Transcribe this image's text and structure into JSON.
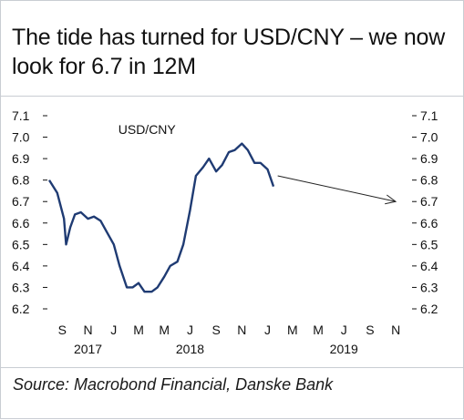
{
  "title": "The tide has turned for USD/CNY – we now look for 6.7 in 12M",
  "source": "Source: Macrobond Financial, Danske Bank",
  "chart_data": {
    "type": "line",
    "series_label": "USD/CNY",
    "ylim": [
      6.2,
      7.1
    ],
    "yticks": [
      "7.1",
      "7.0",
      "6.9",
      "6.8",
      "6.7",
      "6.6",
      "6.5",
      "6.4",
      "6.3",
      "6.2"
    ],
    "month_labels": [
      "S",
      "N",
      "J",
      "M",
      "M",
      "J",
      "S",
      "N",
      "J",
      "M",
      "M",
      "J",
      "S",
      "N"
    ],
    "year_labels": [
      {
        "label": "2017",
        "month_index": 1
      },
      {
        "label": "2018",
        "month_index": 5
      },
      {
        "label": "2019",
        "month_index": 11
      }
    ],
    "line_color": "#1f3b73",
    "x_start": "2017-08-01",
    "x_end": "2019-12-01",
    "series": {
      "x": [
        "2017-08-01",
        "2017-08-20",
        "2017-09-05",
        "2017-09-10",
        "2017-09-20",
        "2017-10-01",
        "2017-10-15",
        "2017-11-01",
        "2017-11-15",
        "2017-12-01",
        "2017-12-15",
        "2018-01-01",
        "2018-01-15",
        "2018-02-01",
        "2018-02-15",
        "2018-03-01",
        "2018-03-15",
        "2018-04-01",
        "2018-04-15",
        "2018-05-01",
        "2018-05-15",
        "2018-06-01",
        "2018-06-15",
        "2018-07-01",
        "2018-07-15",
        "2018-08-01",
        "2018-08-15",
        "2018-09-01",
        "2018-09-15",
        "2018-10-01",
        "2018-10-15",
        "2018-11-01",
        "2018-11-15",
        "2018-12-01",
        "2018-12-15",
        "2019-01-01",
        "2019-01-15"
      ],
      "y": [
        6.8,
        6.74,
        6.62,
        6.5,
        6.58,
        6.64,
        6.65,
        6.62,
        6.63,
        6.61,
        6.56,
        6.5,
        6.4,
        6.3,
        6.3,
        6.32,
        6.28,
        6.28,
        6.3,
        6.35,
        6.4,
        6.42,
        6.5,
        6.66,
        6.82,
        6.86,
        6.9,
        6.84,
        6.87,
        6.93,
        6.94,
        6.97,
        6.94,
        6.88,
        6.88,
        6.85,
        6.77
      ]
    },
    "projection": {
      "x": [
        "2019-01-25",
        "2019-12-01"
      ],
      "y": [
        6.82,
        6.7
      ],
      "arrow": true
    }
  }
}
